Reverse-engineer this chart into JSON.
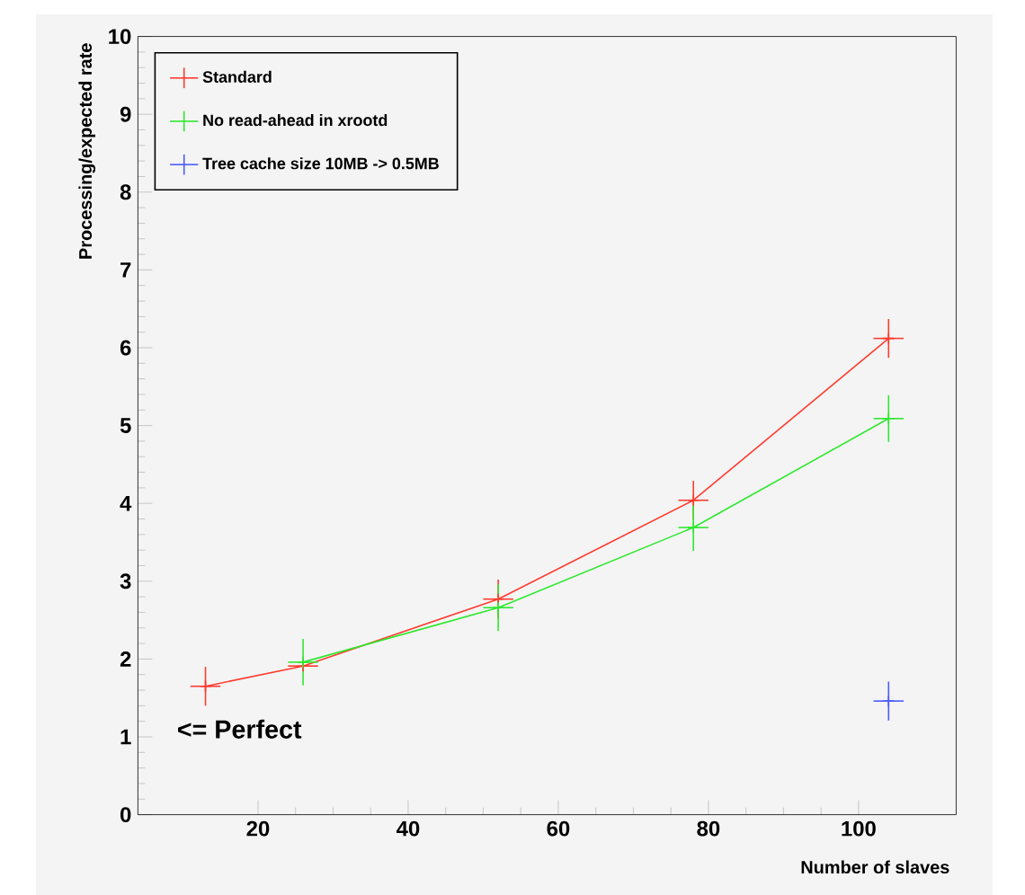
{
  "chart_data": {
    "type": "line",
    "xlabel": "Number of slaves",
    "ylabel": "Processing/expected rate",
    "annotations": [
      "<= Perfect"
    ],
    "xlim": [
      4,
      113
    ],
    "ylim": [
      0,
      10
    ],
    "xticks": [
      20,
      40,
      60,
      80,
      100
    ],
    "yticks": [
      0,
      1,
      2,
      3,
      4,
      5,
      6,
      7,
      8,
      9,
      10
    ],
    "legend": "top left",
    "marker": "cross",
    "line_style": "solid",
    "series": [
      {
        "name": "Standard",
        "color": "#ff3b2f",
        "x": [
          13,
          26,
          52,
          78,
          104
        ],
        "values": [
          1.65,
          1.91,
          2.77,
          4.04,
          6.12
        ],
        "errors": [
          0.25,
          null,
          0.25,
          0.25,
          0.25
        ],
        "xerrors": [
          2,
          2,
          2,
          2,
          2
        ]
      },
      {
        "name": "No read-ahead in xrootd",
        "color": "#2ee82e",
        "x": [
          26,
          52,
          78,
          104
        ],
        "values": [
          1.96,
          2.66,
          3.69,
          5.09
        ],
        "errors": [
          0.3,
          0.3,
          0.3,
          0.3
        ],
        "xerrors": [
          2,
          2,
          2,
          2
        ]
      },
      {
        "name": "Tree cache size 10MB -> 0.5MB",
        "type": "scatter",
        "color": "#4a5cff",
        "x": [
          104
        ],
        "values": [
          1.46
        ],
        "errors": [
          0.25
        ],
        "xerrors": [
          2
        ]
      }
    ]
  }
}
